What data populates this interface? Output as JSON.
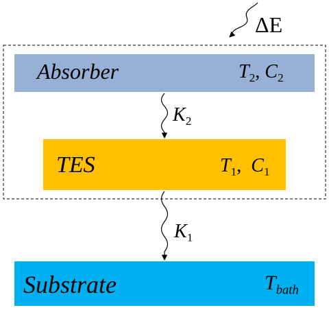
{
  "energy_input": {
    "label": "ΔE"
  },
  "absorber": {
    "label": "Absorber",
    "params": {
      "t": "T",
      "t_sub": "2",
      "c": "C",
      "c_sub": "2"
    },
    "color": "#97b1d6"
  },
  "tes": {
    "label": "TES",
    "params": {
      "t": "T",
      "t_sub": "1",
      "c": "C",
      "c_sub": "1"
    },
    "color": "#ffc000"
  },
  "substrate": {
    "label": "Substrate",
    "params": {
      "t": "T",
      "t_sub": "bath"
    },
    "color": "#00b0f0"
  },
  "links": {
    "k2": {
      "sym": "K",
      "sub": "2"
    },
    "k1": {
      "sym": "K",
      "sub": "1"
    }
  },
  "icons": {
    "incoming_energy": "wavy-arrow-icon",
    "conductance": "wavy-arrow-icon"
  }
}
